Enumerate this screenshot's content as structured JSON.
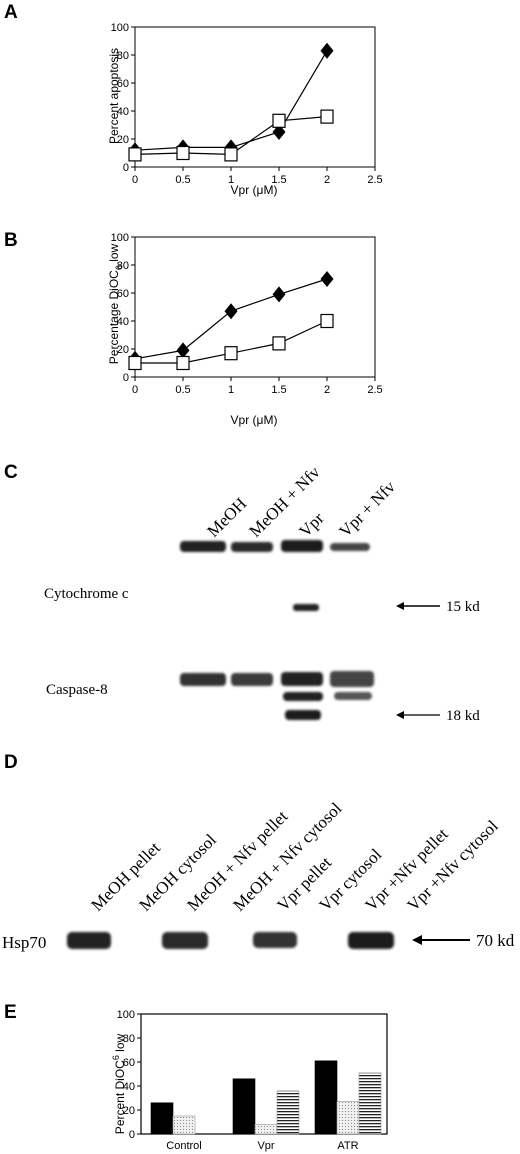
{
  "panels": {
    "a": "A",
    "b": "B",
    "c": "C",
    "d": "D",
    "e": "E"
  },
  "chart_data": [
    {
      "type": "line",
      "panel": "A",
      "ylabel": "Percent apoptosis",
      "xlabel": "Vpr (μM)",
      "xlim": [
        0,
        2.5
      ],
      "ylim": [
        0,
        100
      ],
      "xticks": [
        "0",
        "0.5",
        "1",
        "1.5",
        "2",
        "2.5"
      ],
      "yticks": [
        "0",
        "20",
        "40",
        "60",
        "80",
        "100"
      ],
      "series": [
        {
          "marker": "diamond-filled",
          "x": [
            0,
            0.5,
            1,
            1.5,
            2
          ],
          "y": [
            12,
            14,
            14,
            25,
            83
          ]
        },
        {
          "marker": "square-open",
          "x": [
            0,
            0.5,
            1,
            1.5,
            2
          ],
          "y": [
            9,
            10,
            9,
            33,
            36
          ]
        }
      ]
    },
    {
      "type": "line",
      "panel": "B",
      "ylabel": "Percentage DiOC",
      "ylabel_sub": "6",
      "ylabel_tail": " low",
      "xlabel": "Vpr (μM)",
      "xlim": [
        0,
        2.5
      ],
      "ylim": [
        0,
        100
      ],
      "xticks": [
        "0",
        "0.5",
        "1",
        "1.5",
        "2",
        "2.5"
      ],
      "yticks": [
        "0",
        "20",
        "40",
        "60",
        "80",
        "100"
      ],
      "series": [
        {
          "marker": "diamond-filled",
          "x": [
            0,
            0.5,
            1,
            1.5,
            2
          ],
          "y": [
            13,
            19,
            47,
            59,
            70
          ]
        },
        {
          "marker": "square-open",
          "x": [
            0,
            0.5,
            1,
            1.5,
            2
          ],
          "y": [
            10,
            10,
            17,
            24,
            40
          ]
        }
      ]
    },
    {
      "type": "bar",
      "panel": "E",
      "ylabel": "Percent DiOC",
      "ylabel_sup": "6",
      "ylabel_tail": " low",
      "categories": [
        "Control",
        "Vpr",
        "ATR"
      ],
      "ylim": [
        0,
        100
      ],
      "yticks": [
        "0",
        "20",
        "40",
        "60",
        "80",
        "100"
      ],
      "series": [
        {
          "fill": "solid-black",
          "values": [
            26,
            46,
            61
          ]
        },
        {
          "fill": "light-dotted",
          "values": [
            15,
            8,
            27
          ]
        },
        {
          "fill": "horizontal-striped",
          "values": [
            0,
            36,
            51
          ]
        }
      ]
    }
  ],
  "blot_c": {
    "lanes": [
      "MeOH",
      "MeOH + Nfv",
      "Vpr",
      "Vpr + Nfv"
    ],
    "row_labels": [
      "Cytochrome c",
      "Caspase-8"
    ],
    "markers": [
      "15 kd",
      "18 kd"
    ]
  },
  "blot_d": {
    "lanes": [
      "MeOH pellet",
      "MeOH cytosol",
      "MeOH + Nfv pellet",
      "MeOH + Nfv cytosol",
      "Vpr pellet",
      "Vpr cytosol",
      "Vpr +Nfv pellet",
      "Vpr +Nfv cytosol"
    ],
    "row_label": "Hsp70",
    "marker": "70 kd"
  }
}
